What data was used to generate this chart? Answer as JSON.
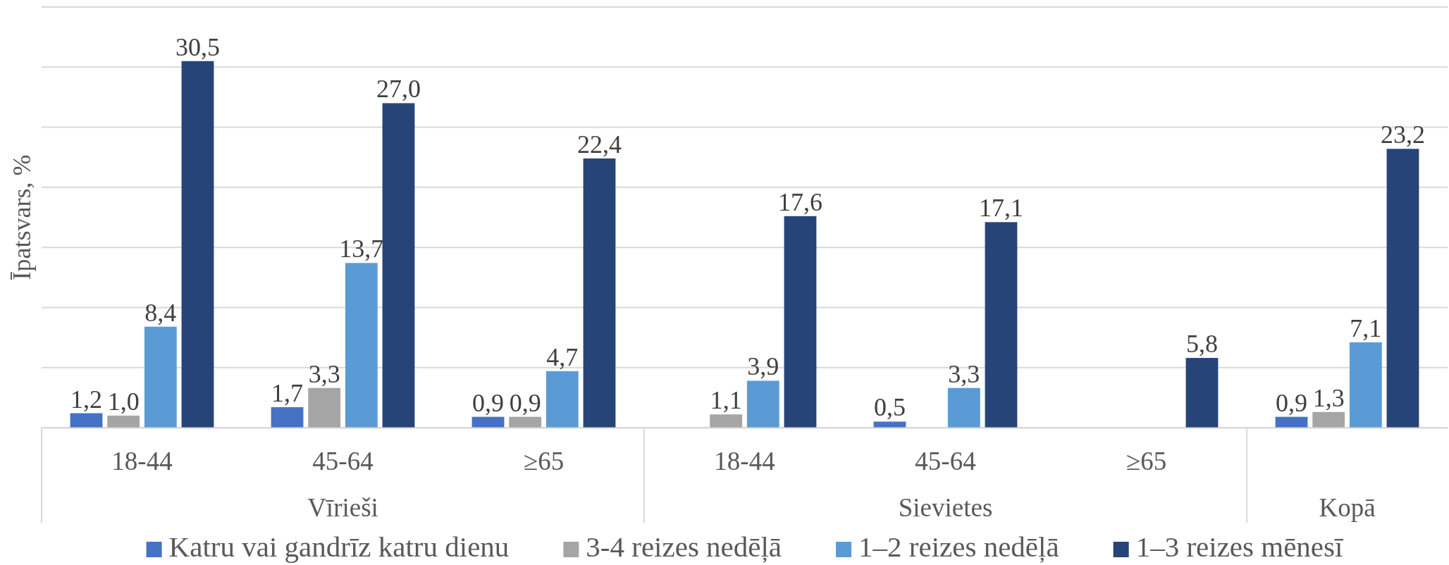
{
  "chart_data": {
    "type": "bar",
    "ylabel": "Īpatsvars, %",
    "categories": [
      "18-44",
      "45-64",
      "≥65",
      "18-44",
      "45-64",
      "≥65",
      null
    ],
    "annotations": [
      "Vīrieši",
      "Sievietes",
      "Kopā"
    ],
    "series": [
      {
        "name": "Katru vai gandrīz katru dienu",
        "color": "#4472c4",
        "values": [
          1.2,
          1.7,
          0.9,
          null,
          0.5,
          null,
          0.9
        ],
        "value_labels": [
          "1,2",
          "1,7",
          "0,9",
          null,
          "0,5",
          null,
          "0,9"
        ]
      },
      {
        "name": "3-4 reizes nedēļā",
        "color": "#a5a5a5",
        "values": [
          1.0,
          3.3,
          0.9,
          1.1,
          null,
          null,
          1.3
        ],
        "value_labels": [
          "1,0",
          "3,3",
          "0,9",
          "1,1",
          null,
          null,
          "1,3"
        ]
      },
      {
        "name": "1–2 reizes nedēļā",
        "color": "#5b9bd5",
        "values": [
          8.4,
          13.7,
          4.7,
          3.9,
          3.3,
          null,
          7.1
        ],
        "value_labels": [
          "8,4",
          "13,7",
          "4,7",
          "3,9",
          "3,3",
          null,
          "7,1"
        ]
      },
      {
        "name": "1–3 reizes mēnesī",
        "color": "#264478",
        "values": [
          30.5,
          27.0,
          22.4,
          17.6,
          17.1,
          5.8,
          23.2
        ],
        "value_labels": [
          "30,5",
          "27,0",
          "22,4",
          "17,6",
          "17,1",
          "5,8",
          "23,2"
        ]
      }
    ],
    "ylim": [
      0,
      35
    ],
    "yticks": [
      {
        "value": 0,
        "label": null
      },
      {
        "value": 5,
        "label": null
      },
      {
        "value": 10,
        "label": null
      },
      {
        "value": 15,
        "label": null
      },
      {
        "value": 20,
        "label": null
      },
      {
        "value": 25,
        "label": null
      },
      {
        "value": 30,
        "label": null
      },
      {
        "value": 35,
        "label": null
      }
    ],
    "tick_labels": "x",
    "grid": "y",
    "legend": "bottom"
  }
}
